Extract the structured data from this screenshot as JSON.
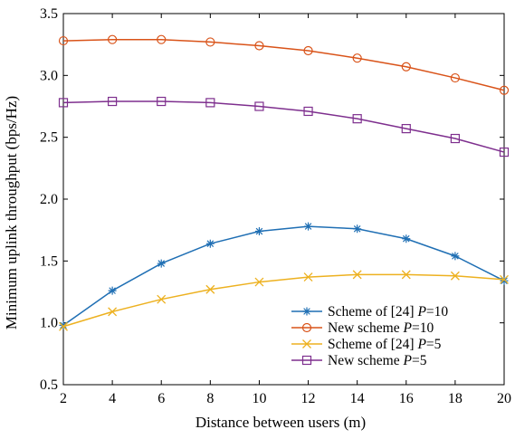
{
  "chart_data": {
    "type": "line",
    "xlabel": "Distance between users (m)",
    "ylabel": "Minimum uplink throughput (bps/Hz)",
    "xlim": [
      2,
      20
    ],
    "ylim": [
      0.5,
      3.5
    ],
    "xticks": [
      2,
      4,
      6,
      8,
      10,
      12,
      14,
      16,
      18,
      20
    ],
    "yticks": [
      0.5,
      1.0,
      1.5,
      2.0,
      2.5,
      3.0,
      3.5
    ],
    "xtick_labels": [
      "2",
      "4",
      "6",
      "8",
      "10",
      "12",
      "14",
      "16",
      "18",
      "20"
    ],
    "ytick_labels": [
      "0.5",
      "1.0",
      "1.5",
      "2.0",
      "2.5",
      "3.0",
      "3.5"
    ],
    "grid": false,
    "legend_position": "bottom-right",
    "x": [
      2,
      4,
      6,
      8,
      10,
      12,
      14,
      16,
      18,
      20
    ],
    "series": [
      {
        "name": "Scheme of [24] P=10",
        "legend_prefix": "Scheme of [24] ",
        "legend_var": "P",
        "legend_suffix": "=10",
        "color": "#1f6fb4",
        "marker": "star",
        "values": [
          0.98,
          1.26,
          1.48,
          1.64,
          1.74,
          1.78,
          1.76,
          1.68,
          1.54,
          1.34
        ]
      },
      {
        "name": "New scheme P=10",
        "legend_prefix": "New scheme ",
        "legend_var": "P",
        "legend_suffix": "=10",
        "color": "#d95319",
        "marker": "circle",
        "values": [
          3.28,
          3.29,
          3.29,
          3.27,
          3.24,
          3.2,
          3.14,
          3.07,
          2.98,
          2.88
        ]
      },
      {
        "name": "Scheme of [24] P=5",
        "legend_prefix": "Scheme of [24] ",
        "legend_var": "P",
        "legend_suffix": "=5",
        "color": "#edb120",
        "marker": "x",
        "values": [
          0.97,
          1.09,
          1.19,
          1.27,
          1.33,
          1.37,
          1.39,
          1.39,
          1.38,
          1.35
        ]
      },
      {
        "name": "New scheme P=5",
        "legend_prefix": "New scheme ",
        "legend_var": "P",
        "legend_suffix": "=5",
        "color": "#7e2f8e",
        "marker": "square",
        "values": [
          2.78,
          2.79,
          2.79,
          2.78,
          2.75,
          2.71,
          2.65,
          2.57,
          2.49,
          2.38
        ]
      }
    ]
  }
}
